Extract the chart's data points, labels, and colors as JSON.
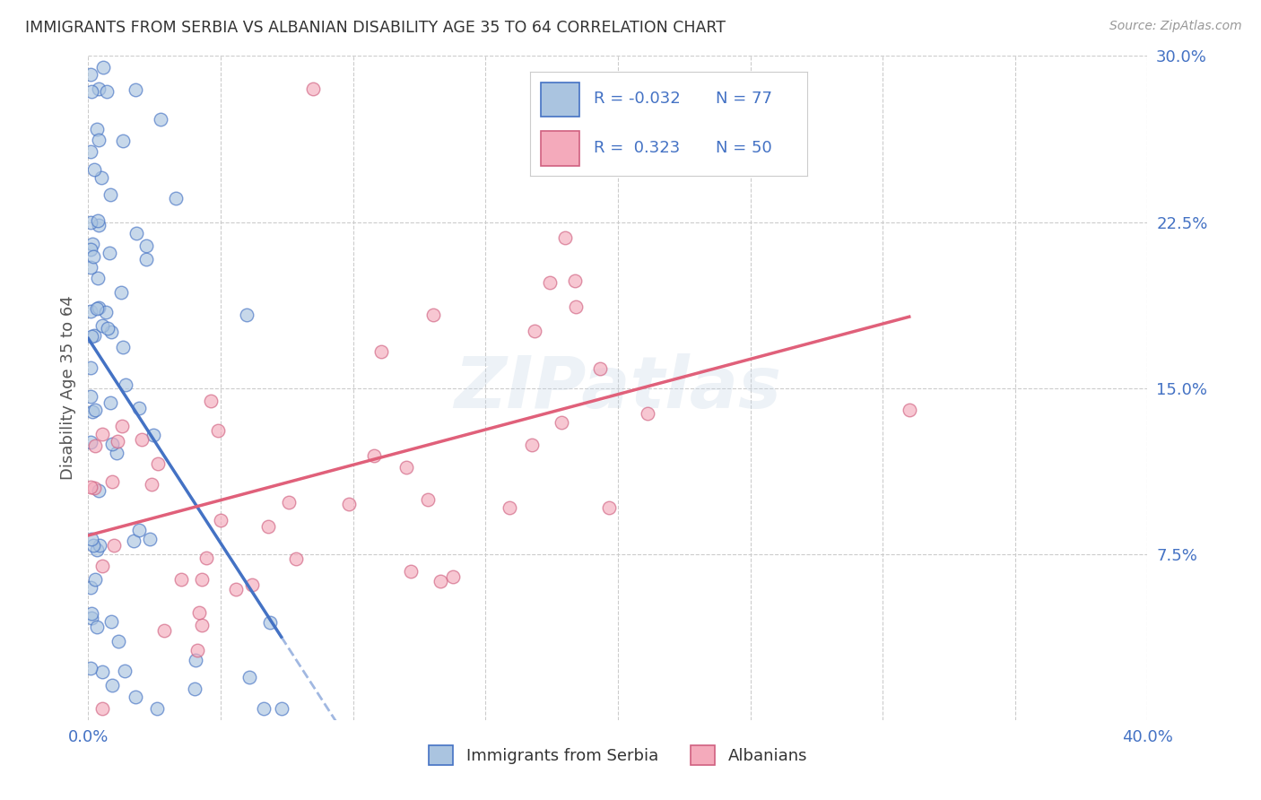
{
  "title": "IMMIGRANTS FROM SERBIA VS ALBANIAN DISABILITY AGE 35 TO 64 CORRELATION CHART",
  "source": "Source: ZipAtlas.com",
  "ylabel": "Disability Age 35 to 64",
  "xlim": [
    0.0,
    0.4
  ],
  "ylim": [
    0.0,
    0.3
  ],
  "xtick_pos": [
    0.0,
    0.05,
    0.1,
    0.15,
    0.2,
    0.25,
    0.3,
    0.35,
    0.4
  ],
  "xticklabels": [
    "0.0%",
    "",
    "",
    "",
    "",
    "",
    "",
    "",
    "40.0%"
  ],
  "ytick_pos": [
    0.075,
    0.15,
    0.225,
    0.3
  ],
  "ytick_labels": [
    "7.5%",
    "15.0%",
    "22.5%",
    "30.0%"
  ],
  "grid_color": "#cccccc",
  "bg_color": "#ffffff",
  "serbia_face": "#aac4e0",
  "serbia_edge": "#4472c4",
  "albanian_face": "#f4aabb",
  "albanian_edge": "#d06080",
  "serbia_line_color": "#4472c4",
  "albanian_line_color": "#e0607a",
  "legend_R_serbia": "-0.032",
  "legend_N_serbia": "77",
  "legend_R_albanian": "0.323",
  "legend_N_albanian": "50",
  "watermark": "ZIPatlas",
  "tick_color": "#4472c4",
  "title_color": "#333333",
  "ylabel_color": "#555555",
  "legend_text_color": "#333333",
  "source_color": "#999999"
}
